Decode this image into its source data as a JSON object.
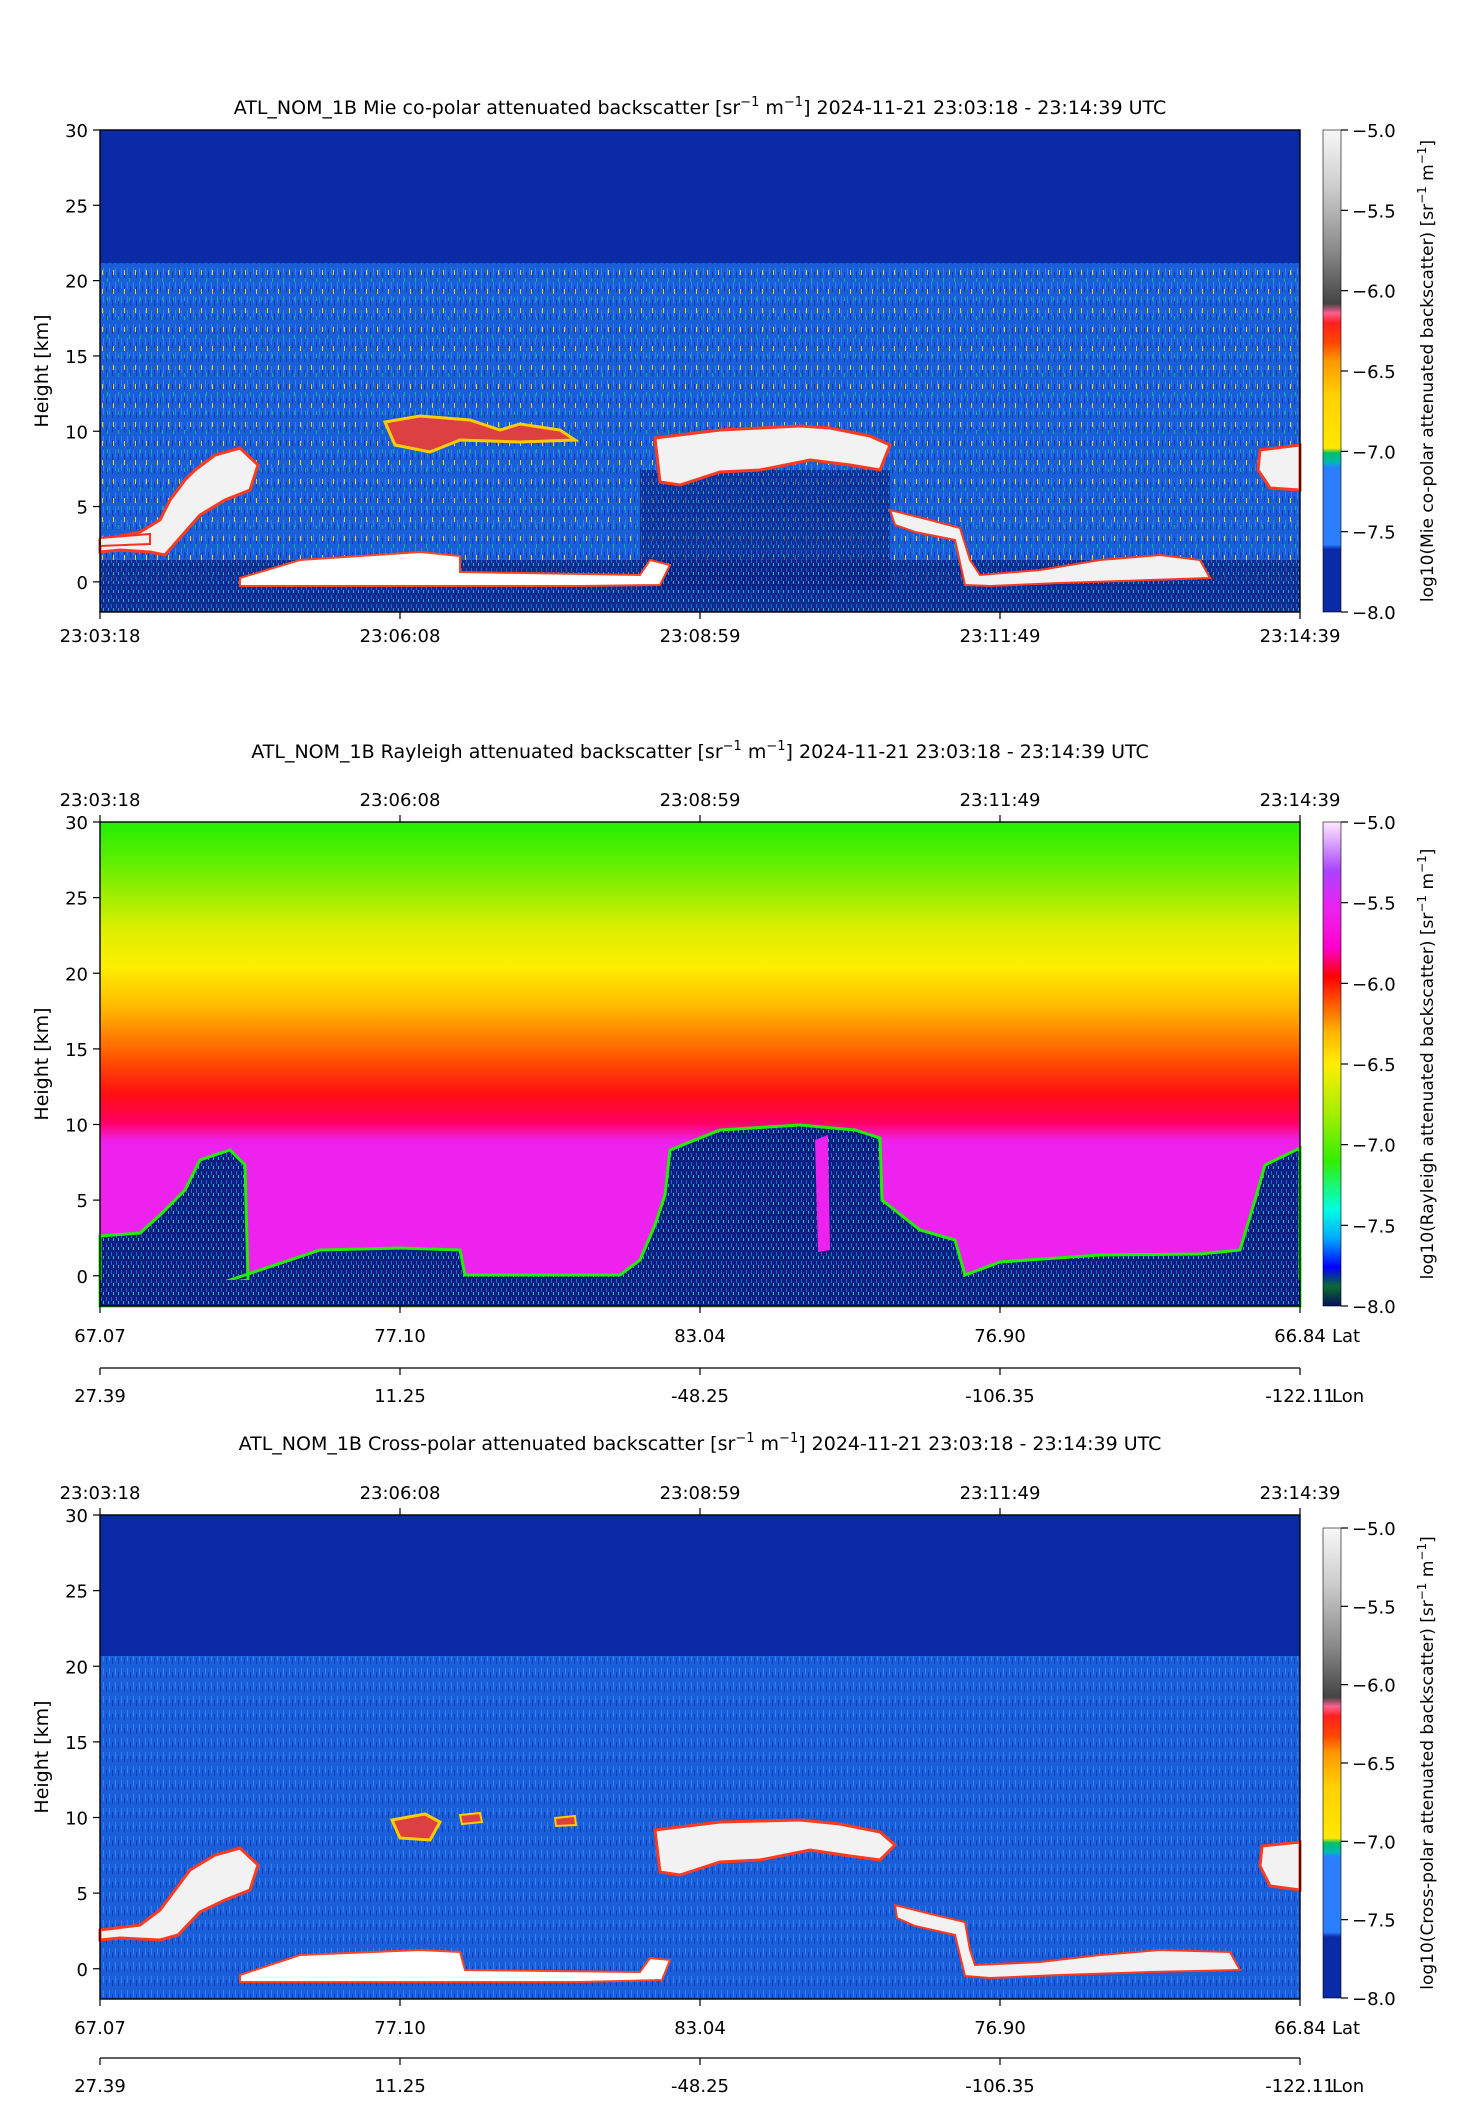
{
  "chart_data": [
    {
      "type": "heatmap",
      "title": "ATL_NOM_1B Mie co-polar attenuated backscatter [sr$^{-1}$ m$^{-1}$]    2024-11-21    23:03:18 - 23:14:39 UTC",
      "title_main": "ATL_NOM_1B Mie co-polar attenuated backscatter [sr",
      "title_sup1": "−1",
      "title_mid": " m",
      "title_sup2": "−1",
      "title_tail": "]    2024-11-21    23:03:18 - 23:14:39 UTC",
      "ylabel": "Height [km]",
      "ylim": [
        -2,
        30
      ],
      "yticks": [
        "30",
        "25",
        "20",
        "15",
        "10",
        "5",
        "0"
      ],
      "time_ticks": [
        "23:03:18",
        "23:06:08",
        "23:08:59",
        "23:11:49",
        "23:14:39"
      ],
      "time_axis_position": "bottom",
      "colorbar": {
        "label": "log10(Mie co-polar attenuated backscatter) [sr",
        "label_sup1": "−1",
        "label_mid": " m",
        "label_sup2": "−1",
        "label_end": "]",
        "range": [
          -8.0,
          -5.0
        ],
        "ticks": [
          "−5.0",
          "−5.5",
          "−6.0",
          "−6.5",
          "−7.0",
          "−7.5",
          "−8.0"
        ],
        "colormap": "calipso"
      }
    },
    {
      "type": "heatmap",
      "title_main": "ATL_NOM_1B Rayleigh attenuated backscatter [sr",
      "title_sup1": "−1",
      "title_mid": " m",
      "title_sup2": "−1",
      "title_tail": "]    2024-11-21    23:03:18 - 23:14:39 UTC",
      "ylabel": "Height [km]",
      "ylim": [
        -2,
        30
      ],
      "yticks": [
        "30",
        "25",
        "20",
        "15",
        "10",
        "5",
        "0"
      ],
      "time_ticks": [
        "23:03:18",
        "23:06:08",
        "23:08:59",
        "23:11:49",
        "23:14:39"
      ],
      "time_axis_position": "top",
      "lat_ticks": [
        "67.07",
        "77.10",
        "83.04",
        "76.90",
        "66.84"
      ],
      "lat_label": "Lat",
      "lon_ticks": [
        "27.39",
        "11.25",
        "-48.25",
        "-106.35",
        "-122.11"
      ],
      "lon_label": "Lon",
      "colorbar": {
        "label": "log10(Rayleigh attenuated backscatter) [sr",
        "label_sup1": "−1",
        "label_mid": " m",
        "label_sup2": "−1",
        "label_end": "]",
        "range": [
          -8.0,
          -5.0
        ],
        "ticks": [
          "−5.0",
          "−5.5",
          "−6.0",
          "−6.5",
          "−7.0",
          "−7.5",
          "−8.0"
        ],
        "colormap": "rainbow"
      }
    },
    {
      "type": "heatmap",
      "title_main": "ATL_NOM_1B Cross-polar attenuated backscatter [sr",
      "title_sup1": "−1",
      "title_mid": " m",
      "title_sup2": "−1",
      "title_tail": "]    2024-11-21    23:03:18 - 23:14:39 UTC",
      "ylabel": "Height [km]",
      "ylim": [
        -2,
        30
      ],
      "yticks": [
        "30",
        "25",
        "20",
        "15",
        "10",
        "5",
        "0"
      ],
      "time_ticks": [
        "23:03:18",
        "23:06:08",
        "23:08:59",
        "23:11:49",
        "23:14:39"
      ],
      "time_axis_position": "top",
      "lat_ticks": [
        "67.07",
        "77.10",
        "83.04",
        "76.90",
        "66.84"
      ],
      "lat_label": "Lat",
      "lon_ticks": [
        "27.39",
        "11.25",
        "-48.25",
        "-106.35",
        "-122.11"
      ],
      "lon_label": "Lon",
      "colorbar": {
        "label": "log10(Cross-polar attenuated backscatter) [sr",
        "label_sup1": "−1",
        "label_mid": " m",
        "label_sup2": "−1",
        "label_end": "]",
        "range": [
          -8.0,
          -5.0
        ],
        "ticks": [
          "−5.0",
          "−5.5",
          "−6.0",
          "−6.5",
          "−7.0",
          "−7.5",
          "−8.0"
        ],
        "colormap": "calipso"
      }
    }
  ],
  "colors": {
    "background_blue": "#0a2aa8",
    "noise_blue": "#1a5ed8",
    "cloud_white": "#f2f2f2",
    "rayleigh_magenta": "#ee22ee"
  }
}
